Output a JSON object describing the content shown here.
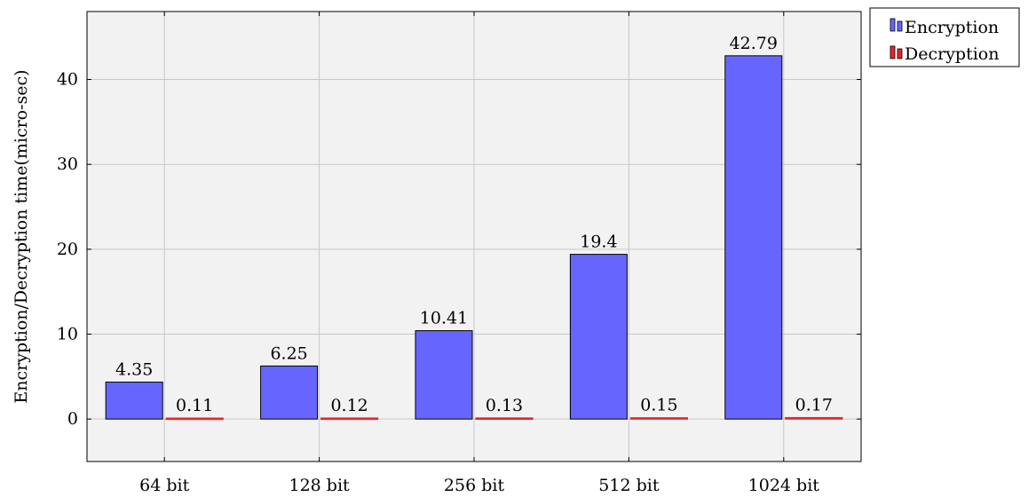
{
  "chart_data": {
    "type": "bar",
    "title": "",
    "xlabel": "",
    "ylabel": "Encryption/Decryption time(micro-sec)",
    "categories": [
      "64 bit",
      "128 bit",
      "256 bit",
      "512 bit",
      "1024 bit"
    ],
    "series": [
      {
        "name": "Encryption",
        "values": [
          4.35,
          6.25,
          10.41,
          19.4,
          42.79
        ],
        "labels": [
          "4.35",
          "6.25",
          "10.41",
          "19.4",
          "42.79"
        ],
        "color": "#6666ff"
      },
      {
        "name": "Decryption",
        "values": [
          0.11,
          0.12,
          0.13,
          0.15,
          0.17
        ],
        "labels": [
          "0.11",
          "0.12",
          "0.13",
          "0.15",
          "0.17"
        ],
        "color": "#e8262a"
      }
    ],
    "ylim": [
      -5,
      48
    ],
    "yticks": [
      0,
      10,
      20,
      30,
      40
    ],
    "ytick_labels": [
      "0",
      "10",
      "20",
      "30",
      "40"
    ],
    "grid": true,
    "legend_position": "outside-top-right",
    "plot_background": "#f2f2f2"
  }
}
